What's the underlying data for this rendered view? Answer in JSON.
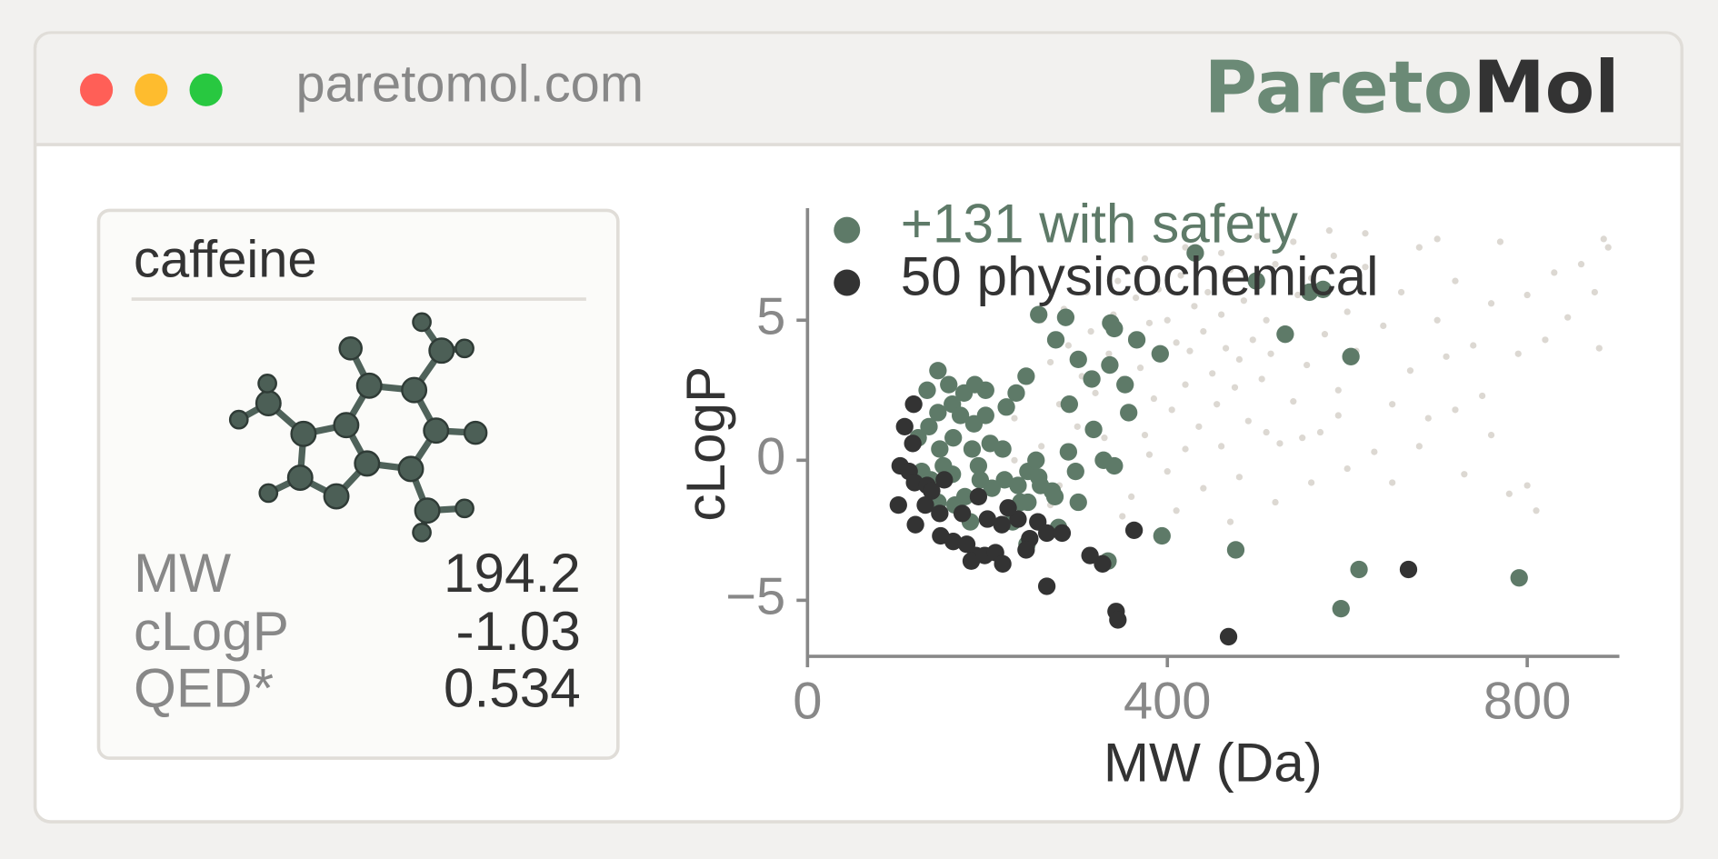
{
  "browser": {
    "url": "paretomol.com",
    "logo_prefix": "Pareto",
    "logo_suffix": "Mol"
  },
  "card": {
    "title": "caffeine",
    "properties": [
      {
        "label": "MW",
        "value": 194.2
      },
      {
        "label": "cLogP",
        "value": -1.03
      },
      {
        "label": "QED*",
        "value": 0.534
      }
    ]
  },
  "chart_data": {
    "type": "scatter",
    "xlabel": "MW (Da)",
    "ylabel": "cLogP",
    "xlim": [
      0,
      900
    ],
    "ylim": [
      -7,
      9
    ],
    "xticks": [
      0,
      400,
      800
    ],
    "yticks": [
      {
        "value": -5,
        "label": "−5"
      },
      0,
      5
    ],
    "legend": "upper left",
    "series": [
      {
        "color": "#dcd8d2",
        "x": [
          230,
          245,
          260,
          270,
          280,
          290,
          300,
          305,
          315,
          320,
          330,
          335,
          340,
          350,
          355,
          360,
          365,
          370,
          375,
          380,
          385,
          390,
          395,
          400,
          405,
          410,
          415,
          420,
          425,
          430,
          435,
          440,
          445,
          450,
          455,
          460,
          465,
          470,
          475,
          480,
          485,
          490,
          495,
          500,
          505,
          510,
          515,
          520,
          525,
          530,
          540,
          545,
          555,
          560,
          570,
          575,
          585,
          590,
          600,
          610,
          620,
          630,
          640,
          650,
          660,
          670,
          680,
          690,
          700,
          710,
          720,
          730,
          740,
          750,
          760,
          770,
          780,
          790,
          800,
          810,
          820,
          830,
          845,
          860,
          875,
          885,
          890,
          880,
          600,
          560,
          520,
          480,
          440,
          400,
          360,
          330,
          300,
          280,
          250,
          260,
          285,
          310,
          345,
          375,
          420,
          460,
          500,
          540,
          580,
          620,
          700,
          350,
          410,
          470,
          650,
          680,
          720,
          760,
          800,
          460,
          510,
          550,
          590,
          380,
          420,
          270,
          240,
          230,
          220
        ],
        "y": [
          1.5,
          2.8,
          0.5,
          3.5,
          2.0,
          4.1,
          1.2,
          3.0,
          4.6,
          2.4,
          0.8,
          3.8,
          5.2,
          2.9,
          1.6,
          4.4,
          5.8,
          3.3,
          0.9,
          4.9,
          2.2,
          6.1,
          3.7,
          5.0,
          1.8,
          4.2,
          6.6,
          2.7,
          3.9,
          5.5,
          1.2,
          4.6,
          6.0,
          3.1,
          2.0,
          5.2,
          4.0,
          6.8,
          2.6,
          3.6,
          5.7,
          1.4,
          4.3,
          6.3,
          2.9,
          5.0,
          3.8,
          7.0,
          0.6,
          4.7,
          2.1,
          5.9,
          3.4,
          6.5,
          1.0,
          4.5,
          7.3,
          2.5,
          5.3,
          3.9,
          6.9,
          0.3,
          4.8,
          2.0,
          6.0,
          3.2,
          7.6,
          1.5,
          5.0,
          3.7,
          6.4,
          -0.5,
          4.1,
          2.3,
          5.6,
          7.8,
          -1.2,
          3.8,
          5.9,
          -1.8,
          4.3,
          6.7,
          5.1,
          7.0,
          6.0,
          7.9,
          7.6,
          4.0,
          -0.3,
          -0.8,
          -1.5,
          -0.6,
          -1.0,
          -0.4,
          -1.3,
          -0.2,
          -1.5,
          -0.9,
          -0.4,
          5.0,
          5.4,
          6.0,
          6.4,
          7.2,
          7.6,
          7.4,
          8.0,
          7.8,
          8.2,
          8.1,
          7.9,
          -2.0,
          -1.8,
          -2.2,
          -0.8,
          0.5,
          1.8,
          0.9,
          -0.9,
          0.5,
          1.0,
          0.8,
          1.6,
          0.2,
          0.4,
          -1.6,
          -1.0,
          0.0,
          -0.5
        ]
      },
      {
        "name": "+131 with safety",
        "color": "#5e7a68",
        "x": [
          431,
          257,
          287,
          499,
          558,
          573,
          531,
          604,
          366,
          392,
          276,
          301,
          337,
          341,
          316,
          336,
          353,
          357,
          291,
          318,
          329,
          341,
          290,
          298,
          275,
          301,
          394,
          476,
          334,
          244,
          228,
          279,
          145,
          133,
          157,
          174,
          186,
          198,
          161,
          170,
          185,
          198,
          145,
          135,
          123,
          147,
          162,
          183,
          203,
          217,
          127,
          137,
          145,
          161,
          175,
          192,
          205,
          219,
          234,
          245,
          237,
          259,
          254,
          243,
          232,
          221,
          613,
          593,
          791,
          181,
          164,
          245,
          257,
          272,
          151,
          190
        ],
        "y": [
          7.4,
          5.2,
          5.1,
          6.4,
          6.0,
          6.1,
          4.5,
          3.7,
          4.3,
          3.8,
          4.3,
          3.6,
          4.9,
          4.7,
          2.9,
          3.4,
          2.7,
          1.7,
          2.0,
          1.1,
          0.0,
          -0.2,
          0.3,
          -0.4,
          -1.3,
          -1.5,
          -2.7,
          -3.2,
          -3.6,
          -3.0,
          -2.2,
          -2.4,
          3.2,
          2.5,
          2.7,
          2.4,
          2.7,
          2.5,
          2.0,
          1.6,
          1.3,
          1.6,
          1.7,
          1.2,
          0.8,
          0.4,
          0.8,
          0.4,
          0.6,
          0.4,
          -0.4,
          -0.7,
          -1.5,
          -0.5,
          -1.3,
          -0.7,
          -1.0,
          -0.7,
          -0.9,
          -0.4,
          -1.5,
          -0.9,
          0.0,
          3.0,
          2.4,
          1.9,
          -3.9,
          -5.3,
          -4.2,
          -2.2,
          -1.6,
          -1.5,
          -0.6,
          -1.1,
          -0.2,
          -0.2
        ]
      },
      {
        "name": "50 physicochemical",
        "color": "#333333",
        "x": [
          118,
          108,
          117,
          103,
          113,
          119,
          101,
          120,
          131,
          147,
          148,
          162,
          177,
          187,
          182,
          197,
          209,
          217,
          200,
          216,
          234,
          256,
          247,
          266,
          283,
          243,
          266,
          314,
          328,
          343,
          345,
          363,
          468,
          668,
          133,
          152,
          172,
          190,
          138,
          223
        ],
        "y": [
          2.0,
          1.2,
          0.6,
          -0.2,
          -0.4,
          -0.8,
          -1.6,
          -2.3,
          -1.6,
          -1.9,
          -2.7,
          -2.9,
          -3.0,
          -3.4,
          -3.6,
          -3.4,
          -3.3,
          -3.7,
          -2.1,
          -2.3,
          -2.1,
          -2.2,
          -2.8,
          -2.6,
          -2.6,
          -3.2,
          -4.5,
          -3.4,
          -3.7,
          -5.4,
          -5.7,
          -2.5,
          -6.3,
          -3.9,
          -0.9,
          -0.7,
          -1.9,
          -1.3,
          -1.1,
          -1.7
        ]
      }
    ]
  }
}
